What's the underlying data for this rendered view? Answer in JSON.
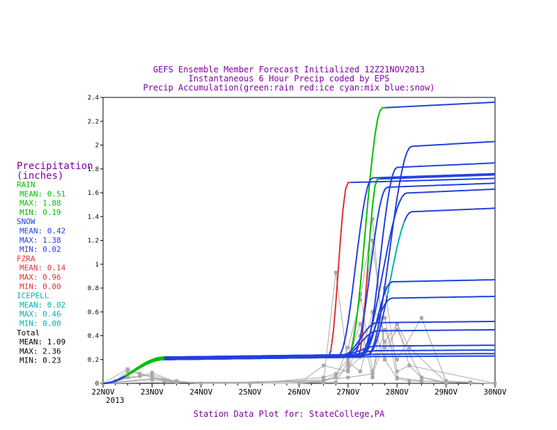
{
  "chart_data": {
    "type": "line",
    "title_lines": [
      "GEFS Ensemble Member Forecast Initialized 12Z21NOV2013",
      "Instantaneous 6 Hour Precip coded by EPS",
      "Precip Accumulation(green:rain red:ice cyan:mix blue:snow)"
    ],
    "footer": "Station Data Plot for: StateCollege,PA",
    "x_tick_labels": [
      "22NOV",
      "23NOV",
      "24NOV",
      "25NOV",
      "26NOV",
      "27NOV",
      "28NOV",
      "29NOV",
      "30NOV"
    ],
    "x_year_label": "2013",
    "y_tick_labels": [
      "0",
      "0.2",
      "0.4",
      "0.6",
      "0.8",
      "1",
      "1.2",
      "1.4",
      "1.6",
      "1.8",
      "2",
      "2.2",
      "2.4"
    ],
    "xlim": [
      0,
      8
    ],
    "ylim": [
      0,
      2.4
    ],
    "x_units": "days since 22NOV2013 00Z",
    "colors": {
      "rain": "#00c000",
      "ice": "#e03030",
      "mix": "#00b0b0",
      "snow": "#2040e0",
      "instantaneous": "#a8a8a8",
      "title": "#8000a0"
    },
    "accumulation_series": [
      {
        "final": 2.36,
        "base": 0.21,
        "t_rise": 5.0,
        "t_top": 5.7,
        "rain_until": 5.7,
        "ice_until": 0
      },
      {
        "final": 2.03,
        "base": 0.22,
        "t_rise": 5.4,
        "t_top": 6.3,
        "rain_until": 0,
        "ice_until": 0
      },
      {
        "final": 1.85,
        "base": 0.21,
        "t_rise": 5.3,
        "t_top": 6.0,
        "rain_until": 0,
        "ice_until": 0
      },
      {
        "final": 1.76,
        "base": 0.21,
        "t_rise": 4.8,
        "t_top": 5.5,
        "rain_until": 0,
        "ice_until": 0
      },
      {
        "final": 1.75,
        "base": 0.2,
        "t_rise": 5.2,
        "t_top": 5.6,
        "rain_until": 5.6,
        "ice_until": 5.35
      },
      {
        "final": 1.72,
        "base": 0.2,
        "t_rise": 4.6,
        "t_top": 5.0,
        "rain_until": 4.95,
        "ice_until": 5.0
      },
      {
        "final": 1.68,
        "base": 0.21,
        "t_rise": 5.1,
        "t_top": 5.8,
        "rain_until": 0,
        "ice_until": 0
      },
      {
        "final": 1.63,
        "base": 0.2,
        "t_rise": 5.2,
        "t_top": 6.2,
        "rain_until": 0,
        "ice_until": 0
      },
      {
        "final": 1.47,
        "base": 0.22,
        "t_rise": 5.4,
        "t_top": 6.3,
        "rain_until": 0,
        "ice_until": 0
      },
      {
        "final": 0.87,
        "base": 0.22,
        "t_rise": 5.3,
        "t_top": 5.9,
        "rain_until": 0,
        "ice_until": 0
      },
      {
        "final": 0.73,
        "base": 0.2,
        "t_rise": 5.2,
        "t_top": 5.9,
        "rain_until": 0,
        "ice_until": 0
      },
      {
        "final": 0.52,
        "base": 0.22,
        "t_rise": 4.9,
        "t_top": 5.6,
        "rain_until": 0,
        "ice_until": 0
      },
      {
        "final": 0.45,
        "base": 0.21,
        "t_rise": 4.9,
        "t_top": 5.6,
        "rain_until": 0,
        "ice_until": 0
      },
      {
        "final": 0.32,
        "base": 0.22,
        "t_rise": 4.9,
        "t_top": 5.6,
        "rain_until": 0,
        "ice_until": 0
      },
      {
        "final": 0.28,
        "base": 0.21,
        "t_rise": 4.9,
        "t_top": 5.6,
        "rain_until": 0,
        "ice_until": 0
      },
      {
        "final": 0.25,
        "base": 0.2,
        "t_rise": 4.9,
        "t_top": 5.6,
        "rain_until": 0,
        "ice_until": 0
      },
      {
        "final": 0.23,
        "base": 0.2,
        "t_rise": 4.9,
        "t_top": 5.6,
        "rain_until": 0,
        "ice_until": 0
      }
    ],
    "instantaneous_series": [
      {
        "x": [
          0,
          0.25,
          0.5,
          0.75,
          1.0,
          1.25,
          1.5,
          2,
          3,
          4,
          4.5,
          4.75,
          5.0,
          5.25,
          5.5,
          5.75,
          6.0,
          6.5,
          7.0,
          7.5
        ],
        "y": [
          0,
          0.02,
          0.1,
          0.08,
          0.05,
          0.02,
          0.01,
          0,
          0,
          0,
          0.01,
          0.93,
          0.15,
          0.75,
          0.1,
          0.45,
          0.2,
          0.55,
          0.02,
          0.01
        ]
      },
      {
        "x": [
          0,
          0.5,
          1.0,
          1.5,
          2,
          3,
          4,
          4.5,
          4.75,
          5.0,
          5.25,
          5.5,
          5.75,
          6.0,
          6.25,
          7.0,
          8.0
        ],
        "y": [
          0,
          0.05,
          0.07,
          0.01,
          0,
          0,
          0,
          0.02,
          0.05,
          0.3,
          0.7,
          1.38,
          0.2,
          0.5,
          0.3,
          0.01,
          0
        ]
      },
      {
        "x": [
          0,
          0.5,
          1.0,
          1.5,
          2,
          4,
          4.5,
          5.0,
          5.25,
          5.5,
          5.75,
          6.0,
          6.5,
          7
        ],
        "y": [
          0,
          0.12,
          0.05,
          0.02,
          0,
          0,
          0.15,
          0.1,
          0.4,
          1.2,
          0.3,
          0.45,
          0.05,
          0
        ]
      },
      {
        "x": [
          0,
          0.75,
          1.0,
          1.5,
          3,
          4.5,
          4.75,
          5.0,
          5.25,
          5.5,
          5.75,
          6.0,
          6.25,
          8
        ],
        "y": [
          0,
          0.06,
          0.09,
          0.01,
          0,
          0.05,
          0.08,
          0.2,
          0.5,
          0.05,
          0.8,
          0.1,
          0.15,
          0
        ]
      },
      {
        "x": [
          0,
          1.0,
          2,
          4.5,
          5.0,
          5.25,
          5.5,
          5.75,
          6.0,
          6.5,
          7.0,
          8
        ],
        "y": [
          0,
          0.03,
          0,
          0.02,
          0.12,
          0.22,
          0.6,
          0.55,
          0.05,
          0.02,
          0.01,
          0
        ]
      },
      {
        "x": [
          0,
          1.0,
          2.0,
          4.5,
          5.0,
          5.5,
          5.75,
          6.0,
          6.25,
          6.5,
          7.0,
          8
        ],
        "y": [
          0,
          0.04,
          0,
          0.03,
          0.05,
          0.08,
          0.35,
          0.5,
          0.15,
          0.05,
          0.01,
          0
        ]
      },
      {
        "x": [
          0,
          1.5,
          4.75,
          5.0,
          5.25,
          5.5,
          5.75,
          6.0,
          6.25,
          8
        ],
        "y": [
          0,
          0.01,
          0.01,
          0.18,
          0.1,
          0.5,
          0.2,
          0.04,
          0.02,
          0
        ]
      }
    ]
  },
  "legend": {
    "heading": "Precipitation\n(inches)",
    "heading_line1": "Precipitation",
    "heading_line2": "(inches)",
    "groups": [
      {
        "name": "RAIN",
        "mean": "MEAN:  0.51",
        "max": "MAX:  1.88",
        "min": "MIN:  0.19",
        "color": "#00c000"
      },
      {
        "name": "SNOW",
        "mean": "MEAN: 0.42",
        "max": "MAX:  1.38",
        "min": "MIN:  0.02",
        "color": "#2040e0"
      },
      {
        "name": "FZRA",
        "mean": "MEAN: 0.14",
        "max": "MAX: 0.96",
        "min": "MIN: 0.00",
        "color": "#e03030"
      },
      {
        "name": "ICEPELL",
        "mean": "MEAN: 0.02",
        "max": "MAX: 0.46",
        "min": "MIN: 0.00",
        "color": "#00b0b0"
      },
      {
        "name": "Total",
        "mean": "MEAN: 1.09",
        "max": "MAX: 2.36",
        "min": "MIN: 0.23",
        "color": "#000000"
      }
    ]
  }
}
